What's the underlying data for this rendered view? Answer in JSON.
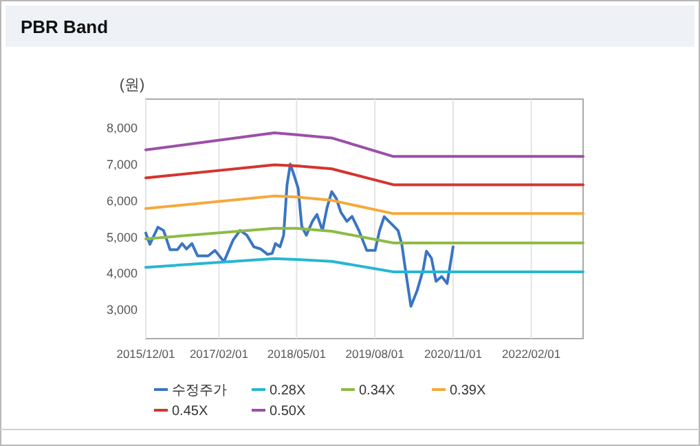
{
  "chart_data": {
    "type": "line",
    "title": "PBR Band",
    "ylabel": "(원)",
    "xlim": [
      "2015-12-01",
      "2022-12-01"
    ],
    "xticks": [
      {
        "value": "2015-12-01",
        "label": "2015/12/01"
      },
      {
        "value": "2017-02-01",
        "label": "2017/02/01"
      },
      {
        "value": "2018-05-01",
        "label": "2018/05/01"
      },
      {
        "value": "2019-08-01",
        "label": "2019/08/01"
      },
      {
        "value": "2020-11-01",
        "label": "2020/11/01"
      },
      {
        "value": "2022-02-01",
        "label": "2022/02/01"
      }
    ],
    "ylim": [
      2200,
      8800
    ],
    "yticks": [
      {
        "value": 3000,
        "label": "3,000"
      },
      {
        "value": 4000,
        "label": "4,000"
      },
      {
        "value": 5000,
        "label": "5,000"
      },
      {
        "value": 6000,
        "label": "6,000"
      },
      {
        "value": 7000,
        "label": "7,000"
      },
      {
        "value": 8000,
        "label": "8,000"
      }
    ],
    "grid": "x",
    "legend": "bottom",
    "line_style": "solid",
    "marker": "none",
    "series": [
      {
        "name": "수정주가",
        "color": "#3a75c4",
        "x": [
          "2015-12-01",
          "2015-12-25",
          "2016-02-10",
          "2016-03-14",
          "2016-04-21",
          "2016-06-03",
          "2016-06-30",
          "2016-07-26",
          "2016-08-27",
          "2016-09-29",
          "2016-11-30",
          "2017-01-09",
          "2017-03-02",
          "2017-04-25",
          "2017-06-04",
          "2017-07-14",
          "2017-08-24",
          "2017-10-03",
          "2017-11-12",
          "2017-12-09",
          "2017-12-28",
          "2018-01-24",
          "2018-02-14",
          "2018-03-06",
          "2018-03-25",
          "2018-04-16",
          "2018-05-10",
          "2018-05-31",
          "2018-06-27",
          "2018-08-01",
          "2018-08-28",
          "2018-09-29",
          "2018-10-26",
          "2018-11-22",
          "2018-12-19",
          "2019-01-15",
          "2019-02-19",
          "2019-03-21",
          "2019-04-30",
          "2019-06-15",
          "2019-08-03",
          "2019-08-29",
          "2019-09-25",
          "2019-11-05",
          "2019-12-15",
          "2020-01-06",
          "2020-01-25",
          "2020-02-28",
          "2020-04-05",
          "2020-05-10",
          "2020-05-29",
          "2020-06-27",
          "2020-07-24",
          "2020-08-26",
          "2020-09-27",
          "2020-11-01"
        ],
        "values": [
          5110,
          4800,
          5270,
          5180,
          4650,
          4650,
          4820,
          4670,
          4820,
          4480,
          4480,
          4630,
          4320,
          4920,
          5180,
          5050,
          4730,
          4670,
          4520,
          4550,
          4820,
          4730,
          5050,
          6440,
          7010,
          6700,
          6340,
          5300,
          5050,
          5430,
          5620,
          5180,
          5810,
          6250,
          6060,
          5680,
          5430,
          5570,
          5180,
          4630,
          4630,
          5180,
          5560,
          5370,
          5180,
          4800,
          4170,
          3090,
          3530,
          4100,
          4610,
          4420,
          3780,
          3910,
          3720,
          4730
        ]
      },
      {
        "name": "0.28X",
        "color": "#27b6d3",
        "x": [
          "2015-12-01",
          "2017-12-22",
          "2018-05-01",
          "2018-11-22",
          "2019-11-18",
          "2022-12-01"
        ],
        "values": [
          4165,
          4405,
          4380,
          4330,
          4040,
          4040
        ]
      },
      {
        "name": "0.34X",
        "color": "#8dbb45",
        "x": [
          "2015-12-01",
          "2017-12-22",
          "2018-05-01",
          "2018-11-22",
          "2019-11-18",
          "2022-12-01"
        ],
        "values": [
          4950,
          5240,
          5240,
          5160,
          4835,
          4835
        ]
      },
      {
        "name": "0.39X",
        "color": "#f5a93b",
        "x": [
          "2015-12-01",
          "2017-12-22",
          "2018-05-01",
          "2018-11-22",
          "2019-11-18",
          "2022-12-01"
        ],
        "values": [
          5785,
          6130,
          6100,
          6010,
          5645,
          5645
        ]
      },
      {
        "name": "0.45X",
        "color": "#d4352e",
        "x": [
          "2015-12-01",
          "2017-12-22",
          "2018-05-01",
          "2018-11-22",
          "2019-11-18",
          "2022-12-01"
        ],
        "values": [
          6630,
          6990,
          6960,
          6880,
          6440,
          6440
        ]
      },
      {
        "name": "0.50X",
        "color": "#9b4fa8",
        "x": [
          "2015-12-01",
          "2017-12-22",
          "2018-05-01",
          "2018-11-22",
          "2019-11-18",
          "2022-12-01"
        ],
        "values": [
          7400,
          7870,
          7820,
          7730,
          7220,
          7220
        ]
      }
    ]
  }
}
